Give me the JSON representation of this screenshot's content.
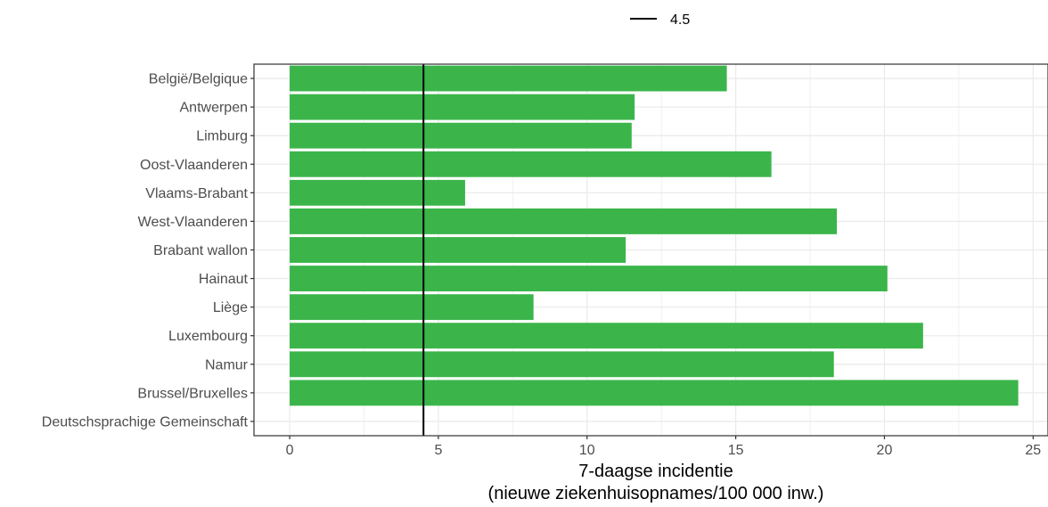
{
  "chart_data": {
    "type": "bar",
    "orientation": "horizontal",
    "categories": [
      "België/Belgique",
      "Antwerpen",
      "Limburg",
      "Oost-Vlaanderen",
      "Vlaams-Brabant",
      "West-Vlaanderen",
      "Brabant wallon",
      "Hainaut",
      "Liège",
      "Luxembourg",
      "Namur",
      "Brussel/Bruxelles",
      "Deutschsprachige Gemeinschaft"
    ],
    "values": [
      14.7,
      11.6,
      11.5,
      16.2,
      5.9,
      18.4,
      11.3,
      20.1,
      8.2,
      21.3,
      18.3,
      24.5,
      0
    ],
    "xlabel_line1": "7-daagse incidentie",
    "xlabel_line2": "(nieuwe ziekenhuisopnames/100 000 inw.)",
    "ylabel": "",
    "xlim": [
      -1.2,
      25.5
    ],
    "xticks": [
      0,
      5,
      10,
      15,
      20,
      25
    ],
    "reference_line": {
      "value": 4.5,
      "label": "4.5",
      "color": "#000000"
    },
    "legend_position": "top",
    "bar_color": "#3bb54a",
    "grid": true,
    "grid_color": "#ebebeb",
    "axis_text_color": "#4d4d4d"
  }
}
